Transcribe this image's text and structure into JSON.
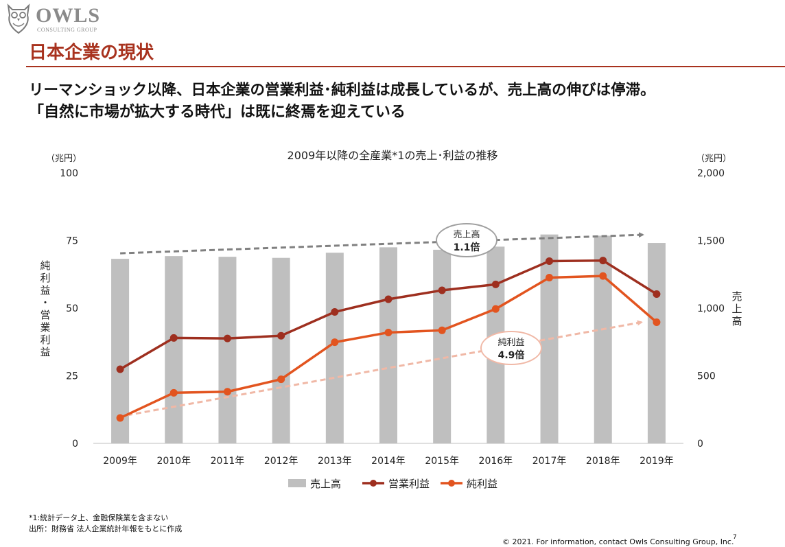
{
  "header": {
    "logo_name": "OWLS",
    "logo_sub": "CONSULTING GROUP",
    "section_title": "日本企業の現状",
    "headline_line1": "リーマンショック以降、日本企業の営業利益･純利益は成長しているが、売上高の伸びは停滞。",
    "headline_line2": "「自然に市場が拡大する時代」は既に終焉を迎えている"
  },
  "chart_data": {
    "type": "bar",
    "title": "2009年以降の全産業*1の売上･利益の推移",
    "categories": [
      "2009年",
      "2010年",
      "2011年",
      "2012年",
      "2013年",
      "2014年",
      "2015年",
      "2016年",
      "2017年",
      "2018年",
      "2019年"
    ],
    "left_axis": {
      "unit": "（兆円）",
      "label": "純利益・営業利益",
      "ylim": [
        0,
        100
      ],
      "ticks": [
        "0",
        "25",
        "50",
        "75",
        "100"
      ]
    },
    "right_axis": {
      "unit": "（兆円）",
      "label": "売上高",
      "ylim": [
        0,
        2000
      ],
      "ticks": [
        "0",
        "500",
        "1,000",
        "1,500",
        "2,000"
      ]
    },
    "series": [
      {
        "name": "売上高",
        "type": "bar",
        "axis": "right",
        "color": "#bfbfbf",
        "values": [
          1365,
          1385,
          1380,
          1372,
          1410,
          1450,
          1432,
          1455,
          1545,
          1536,
          1482
        ]
      },
      {
        "name": "営業利益",
        "type": "line",
        "axis": "left",
        "color": "#9e2f1f",
        "values": [
          27.4,
          39.0,
          38.8,
          39.8,
          48.6,
          53.3,
          56.6,
          58.8,
          67.4,
          67.6,
          55.2
        ]
      },
      {
        "name": "純利益",
        "type": "line",
        "axis": "left",
        "color": "#e2541f",
        "values": [
          9.4,
          18.7,
          19.1,
          23.7,
          37.4,
          41.0,
          41.8,
          49.7,
          61.3,
          61.9,
          44.8
        ]
      }
    ],
    "annotations": [
      {
        "label": "売上高",
        "value": "1.1倍",
        "color": "#808080"
      },
      {
        "label": "純利益",
        "value": "4.9倍",
        "color": "#f0b8a6"
      }
    ],
    "grid": false,
    "legend": "bottom"
  },
  "footnotes": {
    "note1": "*1:統計データ上、金融保険業を含まない",
    "source": "出所：財務省 法人企業統計年報をもとに作成"
  },
  "footer": {
    "copyright": "© 2021. For information, contact Owls Consulting Group, Inc.",
    "page": "7"
  }
}
